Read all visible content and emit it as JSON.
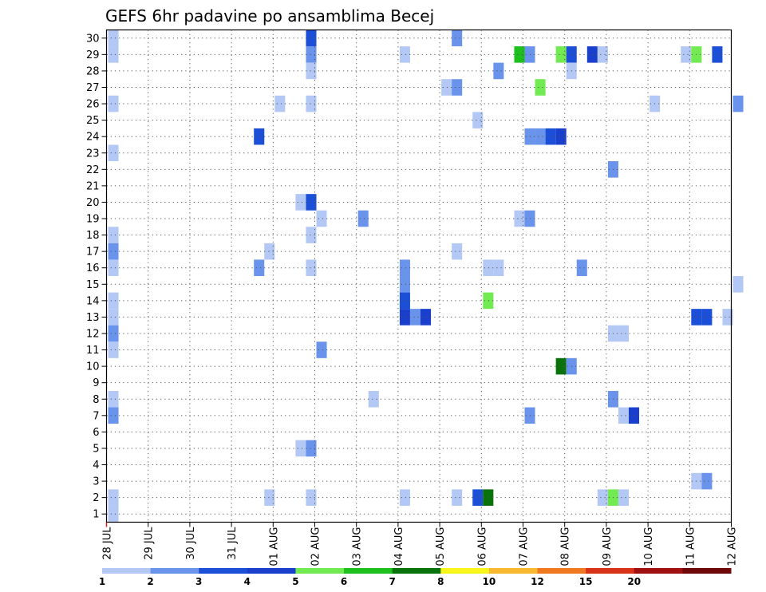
{
  "chart_data": {
    "type": "heatmap",
    "title": "GEFS 6hr padavine po ansamblima Becej",
    "xlabel": "",
    "ylabel": "",
    "x_tick_labels": [
      "28 JUL",
      "29 JUL",
      "30 JUL",
      "31 JUL",
      "01 AUG",
      "02 AUG",
      "03 AUG",
      "04 AUG",
      "05 AUG",
      "06 AUG",
      "07 AUG",
      "08 AUG",
      "09 AUG",
      "10 AUG",
      "11 AUG",
      "12 AUG"
    ],
    "y_tick_labels": [
      "1",
      "2",
      "3",
      "4",
      "5",
      "6",
      "7",
      "8",
      "9",
      "10",
      "11",
      "12",
      "13",
      "14",
      "15",
      "16",
      "17",
      "18",
      "19",
      "20",
      "21",
      "22",
      "23",
      "24",
      "25",
      "26",
      "27",
      "28",
      "29",
      "30"
    ],
    "xlim_steps": [
      0,
      60
    ],
    "ylim": [
      0.5,
      30.5
    ],
    "grid": true,
    "legend": {
      "placement": "bottom",
      "levels": [
        "1",
        "2",
        "3",
        "4",
        "5",
        "6",
        "7",
        "8",
        "10",
        "12",
        "15",
        "20"
      ],
      "colors": [
        "#b4c8f5",
        "#6a93ec",
        "#1b4fd8",
        "#1a3fcc",
        "#72ea52",
        "#1ec01e",
        "#0a720a",
        "#f7f51c",
        "#f8b830",
        "#f07820",
        "#d83218",
        "#a01010",
        "#6e0808"
      ]
    },
    "x_unit_note": "x index = 6-hour steps from 28 JUL 00Z",
    "cells": [
      {
        "x": 0,
        "y": 30,
        "v": 1
      },
      {
        "x": 0,
        "y": 29,
        "v": 1
      },
      {
        "x": 0,
        "y": 26,
        "v": 1
      },
      {
        "x": 0,
        "y": 23,
        "v": 1
      },
      {
        "x": 0,
        "y": 18,
        "v": 1
      },
      {
        "x": 0,
        "y": 17,
        "v": 2
      },
      {
        "x": 0,
        "y": 16,
        "v": 1
      },
      {
        "x": 0,
        "y": 14,
        "v": 1
      },
      {
        "x": 0,
        "y": 13,
        "v": 1
      },
      {
        "x": 0,
        "y": 12,
        "v": 2
      },
      {
        "x": 0,
        "y": 11,
        "v": 1
      },
      {
        "x": 0,
        "y": 8,
        "v": 1
      },
      {
        "x": 0,
        "y": 7,
        "v": 2
      },
      {
        "x": 0,
        "y": 2,
        "v": 1
      },
      {
        "x": 0,
        "y": 1,
        "v": 1
      },
      {
        "x": 14,
        "y": 24,
        "v": 3
      },
      {
        "x": 14,
        "y": 16,
        "v": 2
      },
      {
        "x": 15,
        "y": 17,
        "v": 1
      },
      {
        "x": 15,
        "y": 2,
        "v": 1
      },
      {
        "x": 16,
        "y": 26,
        "v": 1
      },
      {
        "x": 18,
        "y": 20,
        "v": 1
      },
      {
        "x": 18,
        "y": 5,
        "v": 1
      },
      {
        "x": 19,
        "y": 30,
        "v": 3
      },
      {
        "x": 19,
        "y": 29,
        "v": 2
      },
      {
        "x": 19,
        "y": 28,
        "v": 1
      },
      {
        "x": 19,
        "y": 26,
        "v": 1
      },
      {
        "x": 19,
        "y": 20,
        "v": 3
      },
      {
        "x": 19,
        "y": 18,
        "v": 1
      },
      {
        "x": 19,
        "y": 16,
        "v": 1
      },
      {
        "x": 19,
        "y": 5,
        "v": 2
      },
      {
        "x": 19,
        "y": 2,
        "v": 1
      },
      {
        "x": 20,
        "y": 19,
        "v": 1
      },
      {
        "x": 20,
        "y": 11,
        "v": 2
      },
      {
        "x": 24,
        "y": 19,
        "v": 2
      },
      {
        "x": 25,
        "y": 8,
        "v": 1
      },
      {
        "x": 28,
        "y": 29,
        "v": 1
      },
      {
        "x": 28,
        "y": 16,
        "v": 2
      },
      {
        "x": 28,
        "y": 15,
        "v": 2
      },
      {
        "x": 28,
        "y": 14,
        "v": 3
      },
      {
        "x": 28,
        "y": 13,
        "v": 4
      },
      {
        "x": 28,
        "y": 2,
        "v": 1
      },
      {
        "x": 29,
        "y": 13,
        "v": 2
      },
      {
        "x": 30,
        "y": 13,
        "v": 4
      },
      {
        "x": 32,
        "y": 27,
        "v": 1
      },
      {
        "x": 33,
        "y": 30,
        "v": 2
      },
      {
        "x": 33,
        "y": 27,
        "v": 2
      },
      {
        "x": 33,
        "y": 17,
        "v": 1
      },
      {
        "x": 33,
        "y": 2,
        "v": 1
      },
      {
        "x": 35,
        "y": 25,
        "v": 1
      },
      {
        "x": 35,
        "y": 2,
        "v": 3
      },
      {
        "x": 36,
        "y": 16,
        "v": 1
      },
      {
        "x": 36,
        "y": 14,
        "v": 5
      },
      {
        "x": 36,
        "y": 2,
        "v": 7
      },
      {
        "x": 37,
        "y": 28,
        "v": 2
      },
      {
        "x": 37,
        "y": 16,
        "v": 1
      },
      {
        "x": 39,
        "y": 29,
        "v": 6
      },
      {
        "x": 39,
        "y": 19,
        "v": 1
      },
      {
        "x": 40,
        "y": 29,
        "v": 2
      },
      {
        "x": 40,
        "y": 24,
        "v": 2
      },
      {
        "x": 40,
        "y": 19,
        "v": 2
      },
      {
        "x": 40,
        "y": 7,
        "v": 2
      },
      {
        "x": 41,
        "y": 27,
        "v": 5
      },
      {
        "x": 41,
        "y": 24,
        "v": 2
      },
      {
        "x": 42,
        "y": 24,
        "v": 3
      },
      {
        "x": 43,
        "y": 29,
        "v": 5
      },
      {
        "x": 43,
        "y": 24,
        "v": 4
      },
      {
        "x": 43,
        "y": 10,
        "v": 7
      },
      {
        "x": 44,
        "y": 29,
        "v": 3
      },
      {
        "x": 44,
        "y": 28,
        "v": 1
      },
      {
        "x": 44,
        "y": 10,
        "v": 2
      },
      {
        "x": 45,
        "y": 16,
        "v": 2
      },
      {
        "x": 46,
        "y": 29,
        "v": 4
      },
      {
        "x": 47,
        "y": 29,
        "v": 1
      },
      {
        "x": 47,
        "y": 2,
        "v": 1
      },
      {
        "x": 48,
        "y": 22,
        "v": 2
      },
      {
        "x": 48,
        "y": 12,
        "v": 1
      },
      {
        "x": 48,
        "y": 8,
        "v": 2
      },
      {
        "x": 48,
        "y": 2,
        "v": 5
      },
      {
        "x": 49,
        "y": 12,
        "v": 1
      },
      {
        "x": 49,
        "y": 7,
        "v": 1
      },
      {
        "x": 49,
        "y": 2,
        "v": 1
      },
      {
        "x": 50,
        "y": 7,
        "v": 4
      },
      {
        "x": 52,
        "y": 26,
        "v": 1
      },
      {
        "x": 55,
        "y": 29,
        "v": 1
      },
      {
        "x": 56,
        "y": 29,
        "v": 5
      },
      {
        "x": 56,
        "y": 13,
        "v": 3
      },
      {
        "x": 56,
        "y": 3,
        "v": 1
      },
      {
        "x": 57,
        "y": 13,
        "v": 3
      },
      {
        "x": 57,
        "y": 3,
        "v": 2
      },
      {
        "x": 58,
        "y": 29,
        "v": 3
      },
      {
        "x": 59,
        "y": 13,
        "v": 1
      },
      {
        "x": 60,
        "y": 26,
        "v": 2
      },
      {
        "x": 60,
        "y": 15,
        "v": 1
      }
    ]
  }
}
